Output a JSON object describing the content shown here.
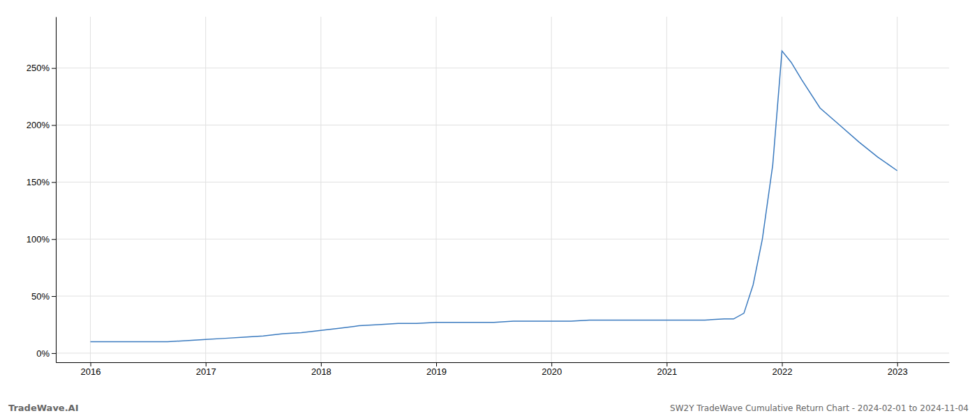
{
  "chart_data": {
    "type": "line",
    "title": "SW2Y TradeWave Cumulative Return Chart - 2024-02-01 to 2024-11-04",
    "annotations": [
      "TradeWave.AI"
    ],
    "color": "#3a7abf",
    "x": [
      2016.0,
      2016.17,
      2016.33,
      2016.5,
      2016.67,
      2016.83,
      2017.0,
      2017.17,
      2017.33,
      2017.5,
      2017.67,
      2017.83,
      2018.0,
      2018.17,
      2018.33,
      2018.5,
      2018.67,
      2018.83,
      2019.0,
      2019.17,
      2019.33,
      2019.5,
      2019.67,
      2019.83,
      2020.0,
      2020.17,
      2020.33,
      2020.5,
      2020.67,
      2020.83,
      2021.0,
      2021.17,
      2021.33,
      2021.5,
      2021.58,
      2021.67,
      2021.75,
      2021.83,
      2021.92,
      2022.0,
      2022.08,
      2022.17,
      2022.33,
      2022.5,
      2022.67,
      2022.83,
      2023.0
    ],
    "values": [
      10,
      10,
      10,
      10,
      10,
      11,
      12,
      13,
      14,
      15,
      17,
      18,
      20,
      22,
      24,
      25,
      26,
      26,
      27,
      27,
      27,
      27,
      28,
      28,
      28,
      28,
      29,
      29,
      29,
      29,
      29,
      29,
      29,
      30,
      30,
      35,
      60,
      100,
      165,
      265,
      255,
      240,
      215,
      200,
      185,
      172,
      160
    ],
    "xlim": [
      2015.7,
      2023.45
    ],
    "ylim": [
      -8,
      295
    ],
    "xticks": [
      2016,
      2017,
      2018,
      2019,
      2020,
      2021,
      2022,
      2023
    ],
    "yticks": [
      {
        "value": 0,
        "label": "0%"
      },
      {
        "value": 50,
        "label": "50%"
      },
      {
        "value": 100,
        "label": "100%"
      },
      {
        "value": 150,
        "label": "150%"
      },
      {
        "value": 200,
        "label": "200%"
      },
      {
        "value": 250,
        "label": "250%"
      }
    ],
    "grid": true
  }
}
